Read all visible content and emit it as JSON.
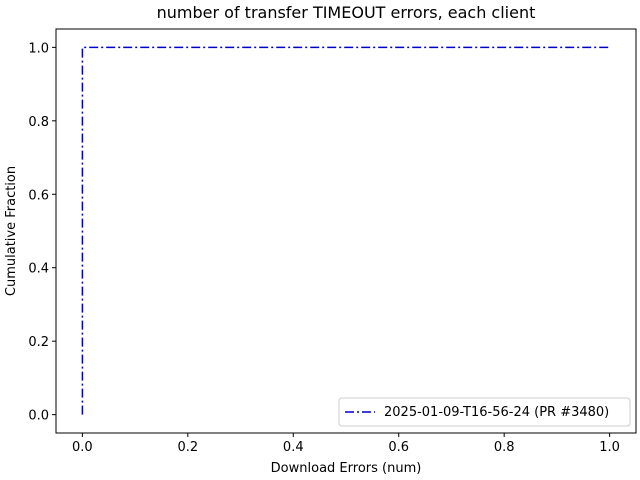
{
  "chart_data": {
    "type": "line",
    "title": "number of transfer TIMEOUT errors, each client",
    "xlabel": "Download Errors (num)",
    "ylabel": "Cumulative Fraction",
    "xlim": [
      -0.05,
      1.05
    ],
    "ylim": [
      -0.05,
      1.05
    ],
    "xticks": [
      0.0,
      0.2,
      0.4,
      0.6,
      0.8,
      1.0
    ],
    "xtick_labels": [
      "0.0",
      "0.2",
      "0.4",
      "0.6",
      "0.8",
      "1.0"
    ],
    "yticks": [
      0.0,
      0.2,
      0.4,
      0.6,
      0.8,
      1.0
    ],
    "ytick_labels": [
      "0.0",
      "0.2",
      "0.4",
      "0.6",
      "0.8",
      "1.0"
    ],
    "grid": false,
    "legend_position": "lower-right",
    "series": [
      {
        "name": "2025-01-09-T16-56-24 (PR #3480)",
        "color": "#0000cc",
        "linestyle": "dash-dot",
        "x": [
          0.0,
          0.0,
          1.0
        ],
        "y": [
          0.0,
          1.0,
          1.0
        ]
      }
    ]
  }
}
